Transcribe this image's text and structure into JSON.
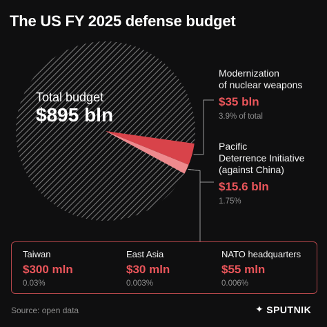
{
  "title": "The US FY 2025 defense budget",
  "source": "Source: open data",
  "brand": {
    "name": "SPUTNIK",
    "logo_icon": "sputnik-logo-icon"
  },
  "colors": {
    "background": "#0f0f10",
    "hatch": "#7a7a7a",
    "nuclear": "#d8434a",
    "pacific": "#ee8a8e",
    "accent": "#e9555a",
    "muted": "#8e8e8e"
  },
  "chart_data": {
    "type": "pie",
    "total_label": "Total budget",
    "total_value_label": "$895 bln",
    "total": 895,
    "slices": [
      {
        "name": "Modernization of nuclear weapons",
        "value": 35,
        "value_label": "$35 bln",
        "share_label": "3.9% of total"
      },
      {
        "name": "Pacific Deterrence Initiative (against China)",
        "value": 15.6,
        "value_label": "$15.6 bln",
        "share_label": "1.75%"
      }
    ],
    "breakdown": [
      {
        "name": "Taiwan",
        "value_label": "$300 mln",
        "share_label": "0.03%"
      },
      {
        "name": "East Asia",
        "value_label": "$30 mln",
        "share_label": "0.003%"
      },
      {
        "name": "NATO headquarters",
        "value_label": "$55 mln",
        "share_label": "0.006%"
      }
    ]
  },
  "callouts": {
    "nuclear": {
      "name_line1": "Modernization",
      "name_line2": "of nuclear weapons"
    },
    "pacific": {
      "name_line1": "Pacific",
      "name_line2": "Deterrence Initiative",
      "name_line3": "(against China)"
    }
  }
}
